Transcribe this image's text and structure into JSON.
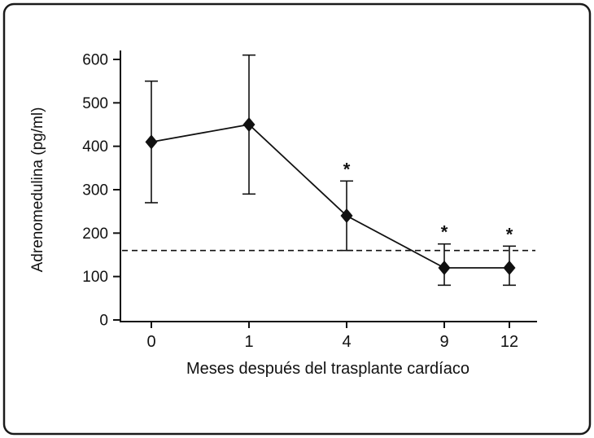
{
  "figure": {
    "background": "#ffffff",
    "border_color": "#1a1a1a",
    "ink_color": "#111111"
  },
  "chart_data": {
    "type": "line",
    "title": "",
    "xlabel": "Meses después del trasplante cardíaco",
    "ylabel": "Adrenomedulina (pg/ml)",
    "categories": [
      "0",
      "1",
      "4",
      "9",
      "12"
    ],
    "ylim": [
      0,
      600
    ],
    "yticks": [
      0,
      100,
      200,
      300,
      400,
      500,
      600
    ],
    "grid": false,
    "legend": "none",
    "marker": "diamond",
    "series": [
      {
        "values": [
          410,
          450,
          240,
          120,
          120
        ],
        "error_low": [
          270,
          290,
          160,
          80,
          80
        ],
        "error_high": [
          550,
          610,
          320,
          175,
          170
        ],
        "significant": [
          false,
          false,
          true,
          true,
          true
        ]
      }
    ],
    "significance_symbol": "*",
    "reference_line": {
      "value": 160,
      "style": "dashed"
    }
  }
}
